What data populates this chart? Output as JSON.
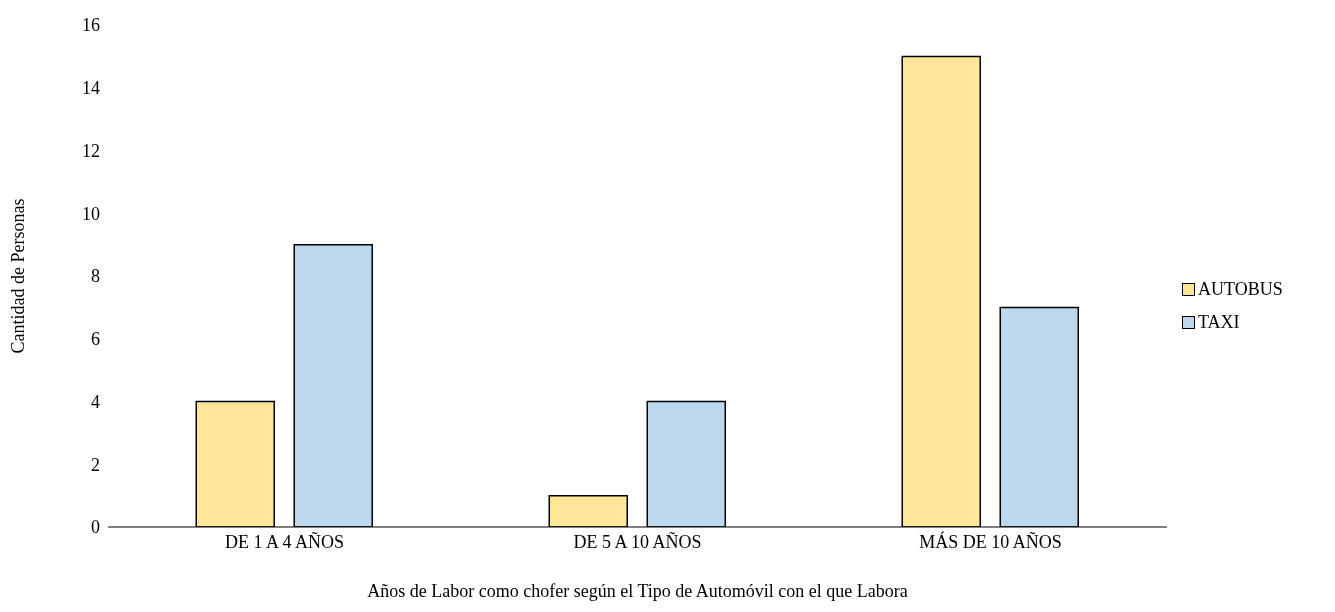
{
  "chart_data": {
    "type": "bar",
    "xlabel": "Años de Labor como chofer según el Tipo de Automóvil con el que Labora",
    "ylabel": "Cantidad de Personas",
    "categories": [
      "DE 1 A 4 AÑOS",
      "DE 5 A 10 AÑOS",
      "MÁS DE 10 AÑOS"
    ],
    "series": [
      {
        "name": "AUTOBUS",
        "color": "#ffe699",
        "values": [
          4,
          1,
          15
        ]
      },
      {
        "name": "TAXI",
        "color": "#bdd7ee",
        "values": [
          9,
          4,
          7
        ]
      }
    ],
    "ylim": [
      0,
      16
    ],
    "yticks": [
      0,
      2,
      4,
      6,
      8,
      10,
      12,
      14,
      16
    ],
    "grid": false,
    "legend": "right"
  }
}
